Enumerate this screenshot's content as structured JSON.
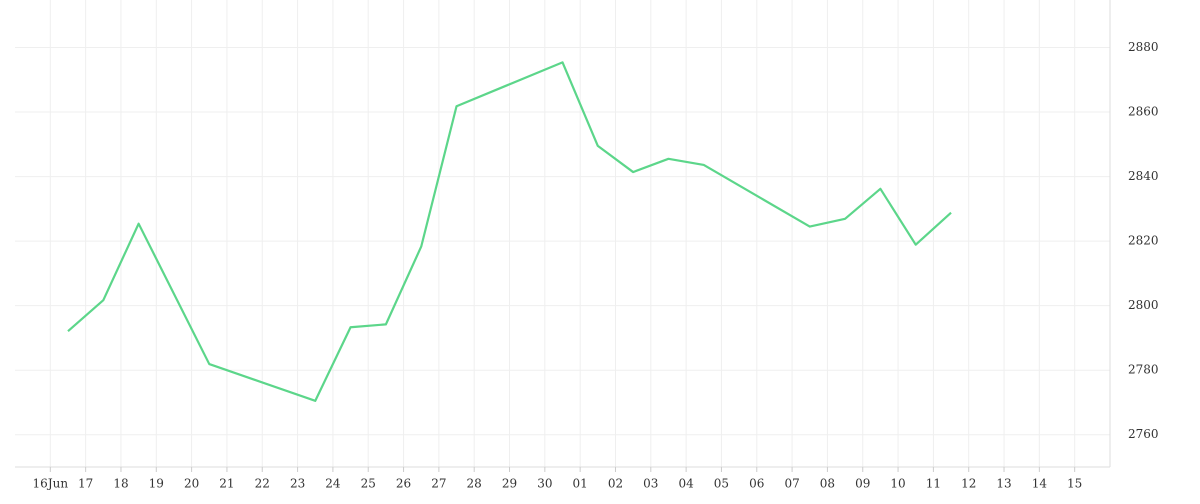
{
  "chart_data": {
    "type": "line",
    "x": [
      0.5,
      1.5,
      2.5,
      4.5,
      7.5,
      8.5,
      9.5,
      10.5,
      11.5,
      14.5,
      15.5,
      16.5,
      17.5,
      18.5,
      21.5,
      22.5,
      23.5,
      24.5,
      25.5
    ],
    "series": [
      {
        "color": "#5cd68a",
        "values": [
          2792.1,
          2801.7,
          2825.4,
          2781.9,
          2770.5,
          2793.3,
          2794.2,
          2818.3,
          2861.8,
          2875.4,
          2849.5,
          2841.4,
          2845.5,
          2843.6,
          2824.5,
          2826.9,
          2836.2,
          2818.9,
          2828.8
        ]
      }
    ],
    "xlim": [
      -1,
      30
    ],
    "xticks": [
      {
        "value": 0,
        "label": "16Jun"
      },
      {
        "value": 1,
        "label": "17"
      },
      {
        "value": 2,
        "label": "18"
      },
      {
        "value": 3,
        "label": "19"
      },
      {
        "value": 4,
        "label": "20"
      },
      {
        "value": 5,
        "label": "21"
      },
      {
        "value": 6,
        "label": "22"
      },
      {
        "value": 7,
        "label": "23"
      },
      {
        "value": 8,
        "label": "24"
      },
      {
        "value": 9,
        "label": "25"
      },
      {
        "value": 10,
        "label": "26"
      },
      {
        "value": 11,
        "label": "27"
      },
      {
        "value": 12,
        "label": "28"
      },
      {
        "value": 13,
        "label": "29"
      },
      {
        "value": 14,
        "label": "30"
      },
      {
        "value": 15,
        "label": "01"
      },
      {
        "value": 16,
        "label": "02"
      },
      {
        "value": 17,
        "label": "03"
      },
      {
        "value": 18,
        "label": "04"
      },
      {
        "value": 19,
        "label": "05"
      },
      {
        "value": 20,
        "label": "06"
      },
      {
        "value": 21,
        "label": "07"
      },
      {
        "value": 22,
        "label": "08"
      },
      {
        "value": 23,
        "label": "09"
      },
      {
        "value": 24,
        "label": "10"
      },
      {
        "value": 25,
        "label": "11"
      },
      {
        "value": 26,
        "label": "12"
      },
      {
        "value": 27,
        "label": "13"
      },
      {
        "value": 28,
        "label": "14"
      },
      {
        "value": 29,
        "label": "15"
      }
    ],
    "ylim": [
      2750,
      2891
    ],
    "yticks": [
      2760,
      2780,
      2800,
      2820,
      2840,
      2860,
      2880
    ],
    "grid": true
  }
}
